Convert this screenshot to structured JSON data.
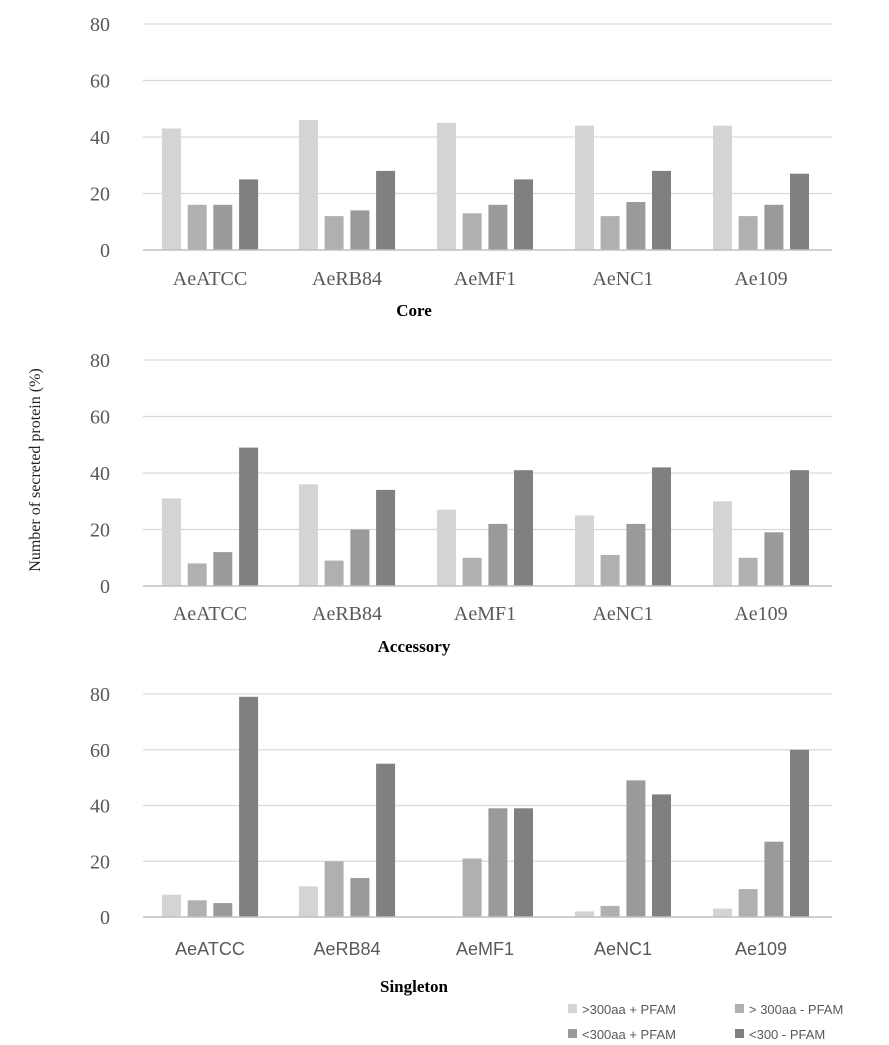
{
  "chart_data": [
    {
      "type": "bar",
      "title": "Core",
      "categories": [
        "AeATCC",
        "AeRB84",
        "AeMF1",
        "AeNC1",
        "Ae109"
      ],
      "series": [
        {
          "name": ">300aa + PFAM",
          "values": [
            43,
            46,
            45,
            44,
            44
          ]
        },
        {
          "name": "> 300aa - PFAM",
          "values": [
            16,
            12,
            13,
            12,
            12
          ]
        },
        {
          "name": "<300aa + PFAM",
          "values": [
            16,
            14,
            16,
            17,
            16
          ]
        },
        {
          "name": "<300 - PFAM",
          "values": [
            25,
            28,
            25,
            28,
            27
          ]
        }
      ],
      "ylim": [
        0,
        80
      ],
      "yticks": [
        0,
        20,
        40,
        60,
        80
      ],
      "grid": true
    },
    {
      "type": "bar",
      "title": "Accessory",
      "categories": [
        "AeATCC",
        "AeRB84",
        "AeMF1",
        "AeNC1",
        "Ae109"
      ],
      "series": [
        {
          "name": ">300aa + PFAM",
          "values": [
            31,
            36,
            27,
            25,
            30
          ]
        },
        {
          "name": "> 300aa - PFAM",
          "values": [
            8,
            9,
            10,
            11,
            10
          ]
        },
        {
          "name": "<300aa + PFAM",
          "values": [
            12,
            20,
            22,
            22,
            19
          ]
        },
        {
          "name": "<300 - PFAM",
          "values": [
            49,
            34,
            41,
            42,
            41
          ]
        }
      ],
      "ylim": [
        0,
        80
      ],
      "yticks": [
        0,
        20,
        40,
        60,
        80
      ],
      "grid": true
    },
    {
      "type": "bar",
      "title": "Singleton",
      "categories": [
        "AeATCC",
        "AeRB84",
        "AeMF1",
        "AeNC1",
        "Ae109"
      ],
      "series": [
        {
          "name": ">300aa + PFAM",
          "values": [
            8,
            11,
            0,
            2,
            3
          ]
        },
        {
          "name": "> 300aa - PFAM",
          "values": [
            6,
            20,
            21,
            4,
            10
          ]
        },
        {
          "name": "<300aa + PFAM",
          "values": [
            5,
            14,
            39,
            49,
            27
          ]
        },
        {
          "name": "<300 - PFAM",
          "values": [
            79,
            55,
            39,
            44,
            60
          ]
        }
      ],
      "ylim": [
        0,
        80
      ],
      "yticks": [
        0,
        20,
        40,
        60,
        80
      ],
      "grid": true
    }
  ],
  "ylabel": "Number of secreted protein (%)",
  "legend": {
    "placement": "bottom-right",
    "entries": [
      ">300aa + PFAM",
      "> 300aa - PFAM",
      "<300aa + PFAM",
      "<300 - PFAM"
    ]
  },
  "colors": {
    "series": [
      "#d4d4d4",
      "#b0b0b0",
      "#9a9a9a",
      "#808080"
    ],
    "grid": "#d9d9d9",
    "axis": "#bfbfbf",
    "text": "#595959"
  }
}
